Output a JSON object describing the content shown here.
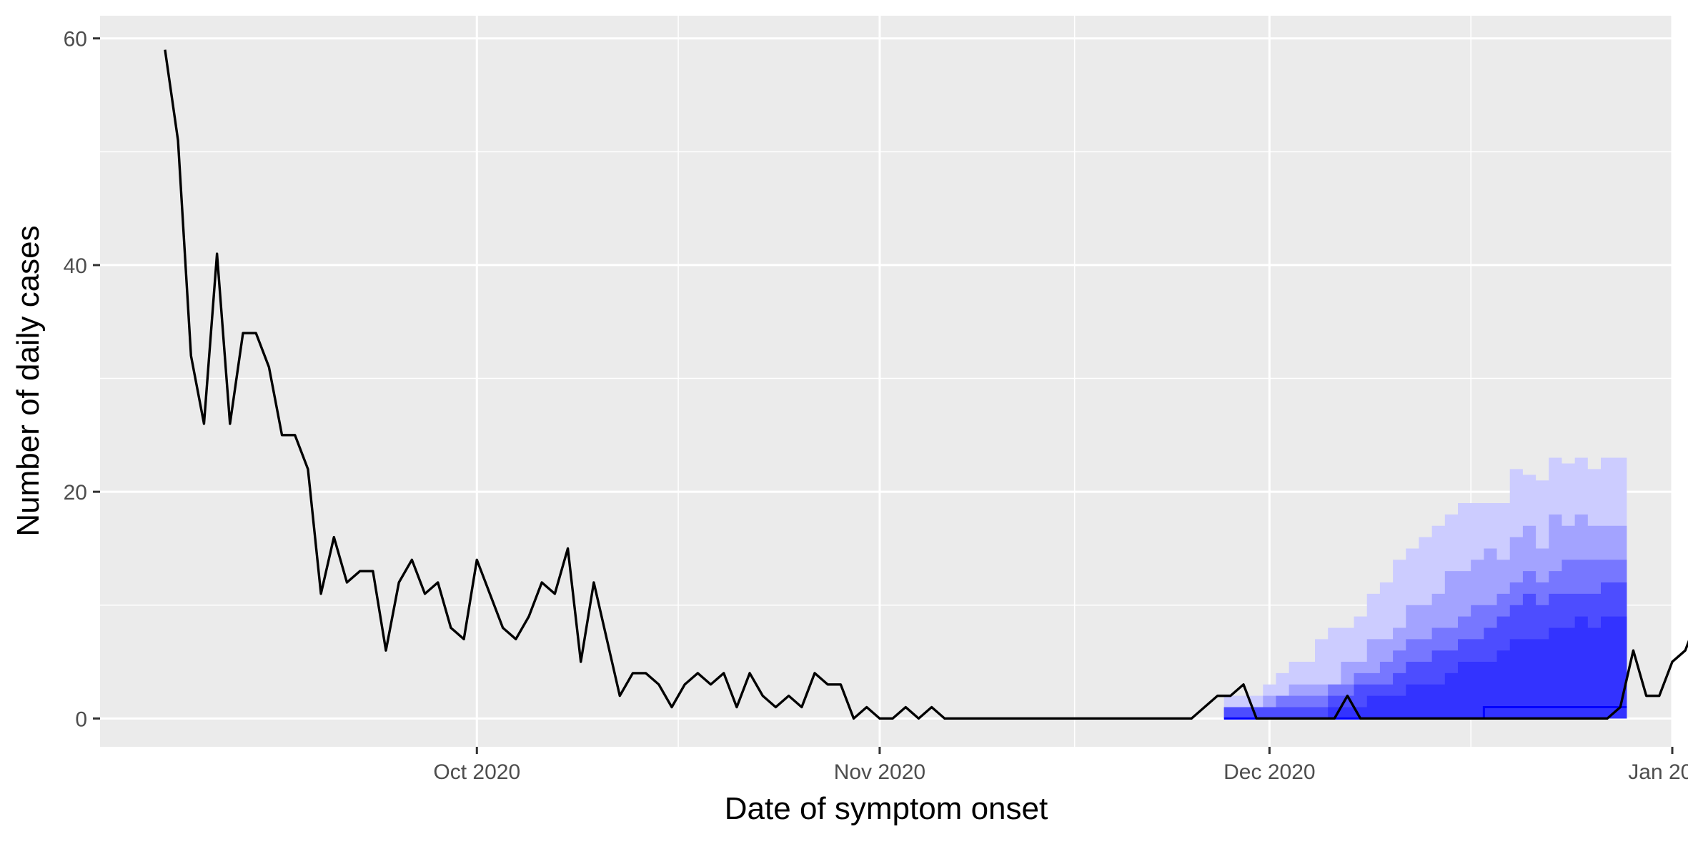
{
  "chart_data": {
    "type": "line",
    "title": "",
    "xlabel": "Date of symptom onset",
    "ylabel": "Number of daily cases",
    "x_axis_type": "date",
    "xlim": [
      "2020-09-02",
      "2021-01-01"
    ],
    "ylim": [
      -2.5,
      62
    ],
    "x_ticks": [
      {
        "date": "2020-10-01",
        "label": "Oct 2020"
      },
      {
        "date": "2020-11-01",
        "label": "Nov 2020"
      },
      {
        "date": "2020-12-01",
        "label": "Dec 2020"
      },
      {
        "date": "2021-01-01",
        "label": "Jan 2021"
      }
    ],
    "y_ticks": [
      0,
      20,
      40,
      60
    ],
    "grid": true,
    "legend": "none",
    "colors": {
      "panel_background": "#ebebeb",
      "gridline": "#ffffff",
      "observed_line": "#000000",
      "median_line": "#0000ff",
      "band_1": "#ccccff",
      "band_2": "#a3a3ff",
      "band_3": "#7777ff",
      "band_4": "#4d4dff",
      "band_5": "#3333ff"
    },
    "observed": {
      "start_date": "2020-09-07",
      "values": [
        59,
        51,
        32,
        26,
        41,
        26,
        34,
        34,
        31,
        25,
        25,
        22,
        11,
        16,
        12,
        13,
        13,
        6,
        12,
        14,
        11,
        12,
        8,
        7,
        14,
        11,
        8,
        7,
        9,
        12,
        11,
        15,
        5,
        12,
        7,
        2,
        4,
        4,
        3,
        1,
        3,
        4,
        3,
        4,
        1,
        4,
        2,
        1,
        2,
        1,
        4,
        3,
        3,
        0,
        1,
        0,
        0,
        1,
        0,
        1,
        0,
        0,
        0,
        0,
        0,
        0,
        0,
        0,
        0,
        0,
        0,
        0,
        0,
        0,
        0,
        0,
        0,
        0,
        0,
        0,
        1,
        2,
        2,
        3,
        0,
        0,
        0,
        0,
        0,
        0,
        0,
        2,
        0,
        0,
        0,
        0,
        0,
        0,
        0,
        0,
        0,
        0,
        0,
        0,
        0,
        0,
        0,
        0,
        0,
        0,
        0,
        0,
        1,
        6,
        2,
        2,
        5,
        6,
        9
      ]
    },
    "forecast": {
      "start_date": "2020-11-28",
      "median": [
        0,
        0,
        0,
        0,
        0,
        0,
        0,
        0,
        0,
        0,
        0,
        0,
        0,
        0,
        0,
        0,
        0,
        0,
        0,
        0,
        1,
        1,
        1,
        1,
        1,
        1,
        1,
        1,
        1,
        1,
        1
      ],
      "bands": [
        {
          "lower": [
            0,
            0,
            0,
            0,
            0,
            0,
            0,
            0,
            0,
            0,
            0,
            0,
            0,
            0,
            0,
            0,
            0,
            0,
            0,
            0,
            0,
            0,
            0,
            0,
            0,
            0,
            0,
            0,
            0,
            0,
            0
          ],
          "upper": [
            2,
            2,
            2,
            3,
            4,
            5,
            5,
            7,
            8,
            8,
            9,
            11,
            12,
            14,
            15,
            16,
            17,
            18,
            19,
            19,
            19,
            19,
            22,
            21.5,
            21,
            23,
            22.5,
            23,
            22,
            23,
            23
          ]
        },
        {
          "lower": [
            0,
            0,
            0,
            0,
            0,
            0,
            0,
            0,
            0,
            0,
            0,
            0,
            0,
            0,
            0,
            0,
            0,
            0,
            0,
            0,
            0,
            0,
            0,
            0,
            0,
            0,
            0,
            0,
            0,
            0,
            0
          ],
          "upper": [
            1,
            1,
            1,
            2,
            2,
            3,
            3,
            3,
            3,
            5,
            5,
            7,
            7,
            8,
            10,
            10,
            11,
            13,
            13,
            14,
            15,
            14,
            16,
            17,
            15,
            18,
            17,
            18,
            17,
            17,
            17
          ]
        },
        {
          "lower": [
            0,
            0,
            0,
            0,
            0,
            0,
            0,
            0,
            0,
            0,
            0,
            0,
            0,
            0,
            0,
            0,
            0,
            0,
            0,
            0,
            0,
            0,
            0,
            0,
            0,
            0,
            0,
            0,
            0,
            0,
            0
          ],
          "upper": [
            1,
            1,
            1,
            1,
            2,
            2,
            2,
            2,
            3,
            3,
            4,
            4,
            5,
            6,
            7,
            7,
            8,
            8,
            9,
            10,
            10,
            11,
            12,
            13,
            12,
            13,
            14,
            14,
            14,
            14,
            14
          ]
        },
        {
          "lower": [
            0,
            0,
            0,
            0,
            0,
            0,
            0,
            0,
            0,
            0,
            0,
            0,
            0,
            0,
            0,
            0,
            0,
            0,
            0,
            0,
            0,
            0,
            0,
            0,
            0,
            0,
            0,
            0,
            0,
            0,
            0
          ],
          "upper": [
            1,
            1,
            1,
            1,
            1,
            1,
            1,
            1,
            2,
            2,
            3,
            3,
            3,
            4,
            5,
            5,
            6,
            6,
            7,
            7,
            8,
            9,
            10,
            11,
            10,
            11,
            11,
            11,
            11,
            12,
            12
          ]
        },
        {
          "lower": [
            0,
            0,
            0,
            0,
            0,
            0,
            0,
            0,
            0,
            0,
            0,
            0,
            0,
            0,
            0,
            0,
            0,
            0,
            0,
            0,
            0,
            0,
            0,
            0,
            0,
            0,
            0,
            0,
            0,
            0,
            0
          ],
          "upper": [
            0,
            0,
            0,
            0,
            0,
            0,
            0,
            0,
            1,
            1,
            1,
            2,
            2,
            2,
            3,
            3,
            3,
            4,
            5,
            5,
            5,
            6,
            7,
            7,
            7,
            8,
            8,
            9,
            8,
            9,
            9
          ]
        }
      ]
    }
  }
}
